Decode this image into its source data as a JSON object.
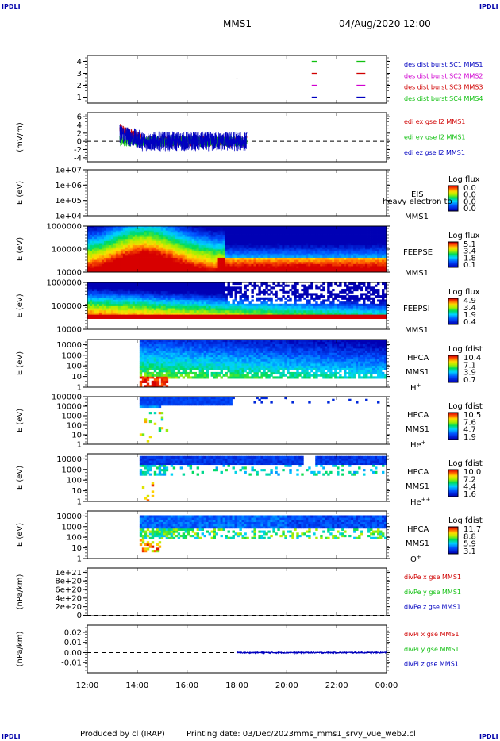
{
  "header": {
    "logo": "IPDLI",
    "spacecraft": "MMS1",
    "datetime": "04/Aug/2020 12:00"
  },
  "footer": {
    "produced_by": "Produced by cl (IRAP)",
    "printing_date": "Printing date: 03/Dec/2023",
    "filename": "mms_mms1_srvy_vue_web2.cl"
  },
  "colors": {
    "red": "#d00000",
    "green": "#10c010",
    "blue": "#0000c0",
    "magenta": "#d000d0"
  },
  "chart_data": [
    {
      "id": "burst",
      "type": "line",
      "ylim": [
        0.5,
        4.5
      ],
      "ticks": [
        "4",
        "3",
        "2",
        "1"
      ],
      "tick_values": [
        4,
        3,
        2,
        1
      ],
      "legend": [
        {
          "text": "des dist burst SC1 MMS1",
          "color": "blue"
        },
        {
          "text": "des dist burst SC2 MMS2",
          "color": "magenta"
        },
        {
          "text": "des dist burst SC3 MMS3",
          "color": "red"
        },
        {
          "text": "des dist burst SC4 MMS4",
          "color": "green"
        }
      ],
      "segments": [
        {
          "level": 4,
          "t0": 21.0,
          "t1": 21.2,
          "color": "green"
        },
        {
          "level": 4,
          "t0": 22.8,
          "t1": 23.15,
          "color": "green"
        },
        {
          "level": 3,
          "t0": 21.0,
          "t1": 21.2,
          "color": "red"
        },
        {
          "level": 3,
          "t0": 22.8,
          "t1": 23.15,
          "color": "red"
        },
        {
          "level": 2,
          "t0": 21.0,
          "t1": 21.2,
          "color": "magenta"
        },
        {
          "level": 2,
          "t0": 22.8,
          "t1": 23.15,
          "color": "magenta"
        },
        {
          "level": 1,
          "t0": 21.0,
          "t1": 21.2,
          "color": "blue"
        },
        {
          "level": 1,
          "t0": 22.8,
          "t1": 23.15,
          "color": "blue"
        }
      ]
    },
    {
      "id": "edi",
      "type": "line",
      "ylabel": "(mV/m)",
      "ylim": [
        -5,
        7
      ],
      "ticks": [
        "6",
        "4",
        "2",
        "0",
        "-2",
        "-4"
      ],
      "tick_values": [
        6,
        4,
        2,
        0,
        -2,
        -4
      ],
      "zero_line": true,
      "data_range": [
        13.3,
        18.4
      ],
      "legend": [
        {
          "text": "edi ex gse l2 MMS1",
          "color": "red"
        },
        {
          "text": "edi ey gse l2 MMS1",
          "color": "green"
        },
        {
          "text": "edi ez gse l2 MMS1",
          "color": "blue"
        }
      ]
    },
    {
      "id": "eis",
      "type": "heatmap",
      "ylabel": "E (eV)",
      "ylim": [
        10000,
        10000000
      ],
      "log": true,
      "ticks": [
        "1e+07",
        "1e+06",
        "1e+05",
        "1e+04"
      ],
      "tick_values": [
        10000000,
        1000000,
        100000,
        10000
      ],
      "labels": [
        "EIS",
        "heavy electron to",
        "MMS1"
      ],
      "colorbar": {
        "title": "Log flux",
        "ticks": [
          "0.0",
          "0.0",
          "0.0",
          "0.0"
        ]
      },
      "empty": true
    },
    {
      "id": "feepse",
      "type": "heatmap",
      "ylabel": "E (eV)",
      "ylim": [
        10000,
        1000000
      ],
      "log": true,
      "ticks": [
        "1000000",
        "100000",
        "10000"
      ],
      "tick_values": [
        1000000,
        100000,
        10000
      ],
      "labels": [
        "FEEPSE",
        "MMS1"
      ],
      "colorbar": {
        "title": "Log flux",
        "ticks": [
          "5.1",
          "3.4",
          "1.8",
          "0.1"
        ]
      }
    },
    {
      "id": "feepsi",
      "type": "heatmap",
      "ylabel": "E (eV)",
      "ylim": [
        10000,
        1000000
      ],
      "log": true,
      "ticks": [
        "1000000",
        "100000",
        "10000"
      ],
      "tick_values": [
        1000000,
        100000,
        10000
      ],
      "labels": [
        "FEEPSI",
        "MMS1"
      ],
      "colorbar": {
        "title": "Log flux",
        "ticks": [
          "4.9",
          "3.4",
          "1.9",
          "0.4"
        ]
      }
    },
    {
      "id": "hpca_h",
      "type": "heatmap",
      "ylabel": "E (eV)",
      "ylim": [
        1,
        30000
      ],
      "log": true,
      "ticks": [
        "10000",
        "1000",
        "100",
        "10",
        "1"
      ],
      "tick_values": [
        10000,
        1000,
        100,
        10,
        1
      ],
      "labels": [
        "HPCA",
        "MMS1"
      ],
      "species": {
        "base": "H",
        "sup": "+"
      },
      "colorbar": {
        "title": "Log fdist",
        "ticks": [
          "10.4",
          "7.1",
          "3.9",
          "0.7"
        ]
      }
    },
    {
      "id": "hpca_he",
      "type": "heatmap",
      "ylabel": "E (eV)",
      "ylim": [
        1,
        100000
      ],
      "log": true,
      "ticks": [
        "100000",
        "10000",
        "1000",
        "100",
        "10",
        "1"
      ],
      "tick_values": [
        100000,
        10000,
        1000,
        100,
        10,
        1
      ],
      "labels": [
        "HPCA",
        "MMS1"
      ],
      "species": {
        "base": "He",
        "sup": "+"
      },
      "colorbar": {
        "title": "Log fdist",
        "ticks": [
          "10.5",
          "7.6",
          "4.7",
          "1.9"
        ]
      }
    },
    {
      "id": "hpca_hepp",
      "type": "heatmap",
      "ylabel": "E (eV)",
      "ylim": [
        1,
        30000
      ],
      "log": true,
      "ticks": [
        "10000",
        "1000",
        "100",
        "10",
        "1"
      ],
      "tick_values": [
        10000,
        1000,
        100,
        10,
        1
      ],
      "labels": [
        "HPCA",
        "MMS1"
      ],
      "species": {
        "base": "He",
        "sup": "++"
      },
      "colorbar": {
        "title": "Log fdist",
        "ticks": [
          "10.0",
          "7.2",
          "4.4",
          "1.6"
        ]
      }
    },
    {
      "id": "hpca_o",
      "type": "heatmap",
      "ylabel": "E (eV)",
      "ylim": [
        1,
        30000
      ],
      "log": true,
      "ticks": [
        "10000",
        "1000",
        "100",
        "10",
        "1"
      ],
      "tick_values": [
        10000,
        1000,
        100,
        10,
        1
      ],
      "labels": [
        "HPCA",
        "MMS1"
      ],
      "species": {
        "base": "O",
        "sup": "+"
      },
      "colorbar": {
        "title": "Log fdist",
        "ticks": [
          "11.7",
          "8.8",
          "5.9",
          "3.1"
        ]
      }
    },
    {
      "id": "divpe",
      "type": "line",
      "ylabel": "(nPa/km)",
      "ylim": [
        -1e+19,
        1.1e+21
      ],
      "ticks": [
        "1e+21",
        "8e+20",
        "6e+20",
        "4e+20",
        "2e+20",
        "0"
      ],
      "tick_values": [
        1e+21,
        8e+20,
        6e+20,
        4e+20,
        2e+20,
        0
      ],
      "zero_line": true,
      "legend": [
        {
          "text": "divPe x gse MMS1",
          "color": "red"
        },
        {
          "text": "divPe y gse MMS1",
          "color": "green"
        },
        {
          "text": "divPe z gse MMS1",
          "color": "blue"
        }
      ]
    },
    {
      "id": "divpi",
      "type": "line",
      "ylabel": "(nPa/km)",
      "ylim": [
        -0.02,
        0.027
      ],
      "ticks": [
        "0.02",
        "0.01",
        "0.00",
        "-0.01"
      ],
      "tick_values": [
        0.02,
        0.01,
        0.0,
        -0.01
      ],
      "zero_line": true,
      "data_range": [
        18.0,
        24.0
      ],
      "legend": [
        {
          "text": "divPi x gse MMS1",
          "color": "red"
        },
        {
          "text": "divPi y gse MMS1",
          "color": "green"
        },
        {
          "text": "divPi z gse MMS1",
          "color": "blue"
        }
      ]
    }
  ],
  "time_axis": {
    "start_hour": 12,
    "end_hour": 24,
    "ticks": [
      "12:00",
      "14:00",
      "16:00",
      "18:00",
      "20:00",
      "22:00",
      "00:00"
    ],
    "tick_hours": [
      12,
      14,
      16,
      18,
      20,
      22,
      24
    ]
  }
}
